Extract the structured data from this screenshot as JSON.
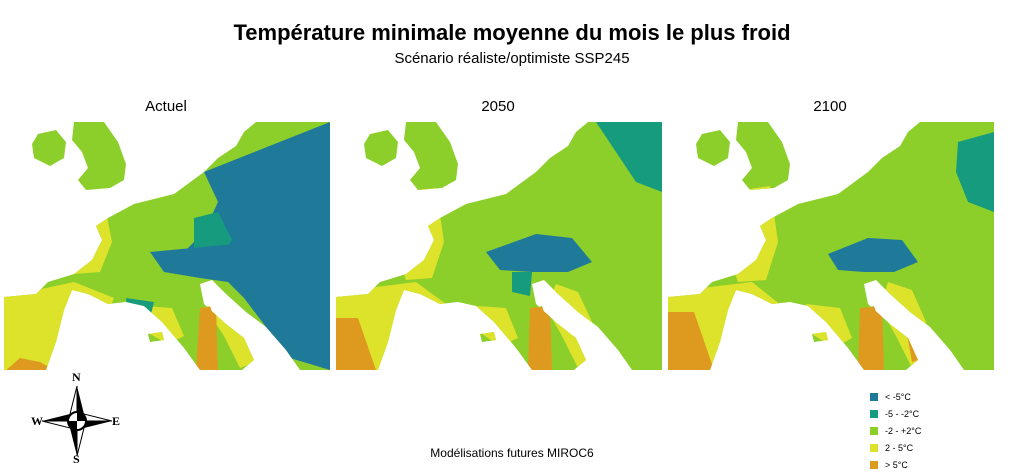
{
  "title": "Température minimale moyenne du mois le plus froid",
  "subtitle": "Scénario réaliste/optimiste SSP245",
  "footer": "Modélisations futures MIROC6",
  "compass": {
    "n": "N",
    "s": "S",
    "e": "E",
    "w": "W"
  },
  "panels": [
    {
      "label": "Actuel"
    },
    {
      "label": "2050"
    },
    {
      "label": "2100"
    }
  ],
  "legend": [
    {
      "label": "<  -5°C",
      "color": "#1f7a9a"
    },
    {
      "label": "-5  -  -2°C",
      "color": "#179b7e"
    },
    {
      "label": "-2  -  +2°C",
      "color": "#8ccf2a"
    },
    {
      "label": "2  -  5°C",
      "color": "#dde32a"
    },
    {
      "label": ">  5°C",
      "color": "#de9a1e"
    }
  ]
}
